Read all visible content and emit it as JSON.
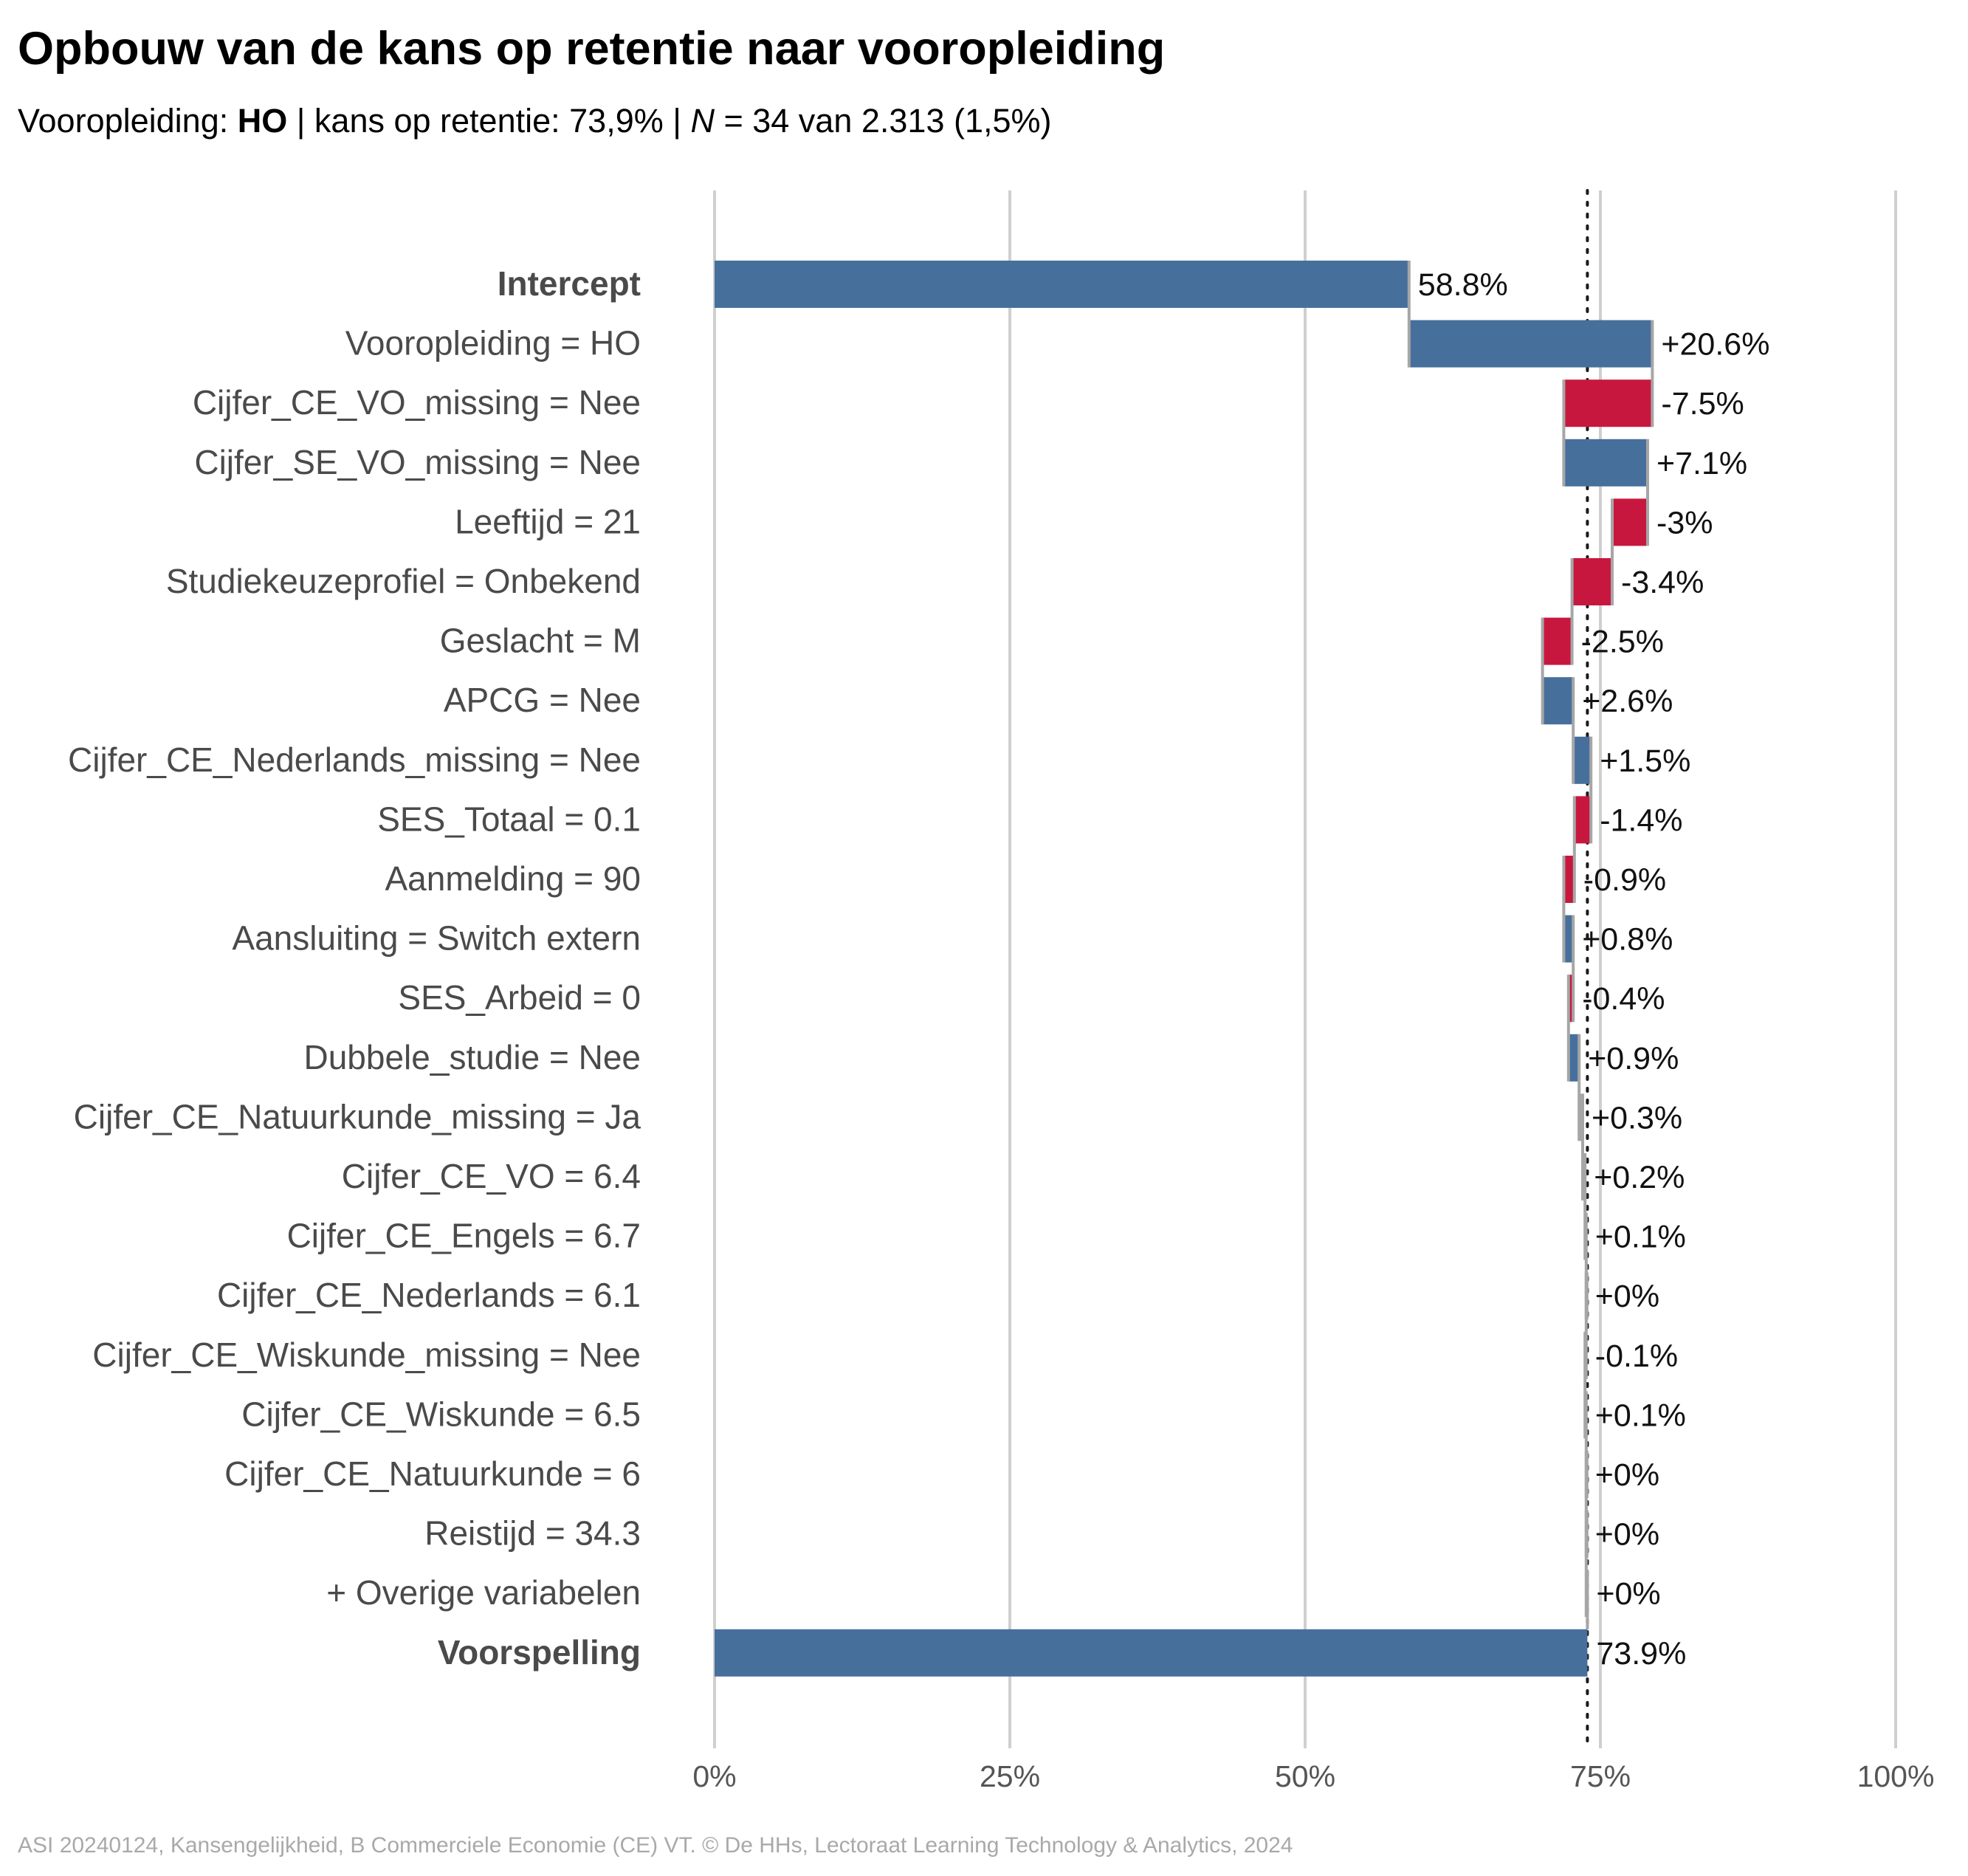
{
  "title": "Opbouw van de kans op retentie naar vooropleiding",
  "subtitle": {
    "prefix": "Vooropleiding: ",
    "group": "HO",
    "sep1": " | kans op retentie: ",
    "prob": "73,9%",
    "sep2": " | ",
    "n_symbol": "N",
    "n_text": " = 34 van 2.313 (1,5%)"
  },
  "footer": "ASI 20240124, Kansengelijkheid, B Commerciele Economie (CE) VT. © De HHs, Lectoraat Learning Technology & Analytics, 2024",
  "colors": {
    "positive": "#476f9c",
    "negative": "#c8173f",
    "neutral": "#a6a6a6",
    "connector": "#a6a6a6",
    "grid": "#cfcfcf",
    "label_text": "#4a4a4a",
    "value_text": "#111111",
    "tick_text": "#555555"
  },
  "chart_data": {
    "type": "waterfall",
    "orientation": "horizontal",
    "x_range": [
      0,
      100
    ],
    "x_unit": "%",
    "grid": true,
    "x_ticks": [
      {
        "value": 0,
        "label": "0%"
      },
      {
        "value": 25,
        "label": "25%"
      },
      {
        "value": 50,
        "label": "50%"
      },
      {
        "value": 75,
        "label": "75%"
      },
      {
        "value": 100,
        "label": "100%"
      }
    ],
    "reference_line": {
      "value": 73.9,
      "style": "dotted"
    },
    "bars": [
      {
        "label": "Intercept",
        "kind": "total",
        "bold": true,
        "start": 0,
        "end": 58.8,
        "value_label": "58.8%"
      },
      {
        "label": "Vooropleiding = HO",
        "kind": "step",
        "start": 58.8,
        "end": 79.4,
        "value_label": "+20.6%"
      },
      {
        "label": "Cijfer_CE_VO_missing = Nee",
        "kind": "step",
        "start": 79.4,
        "end": 71.9,
        "value_label": "-7.5%"
      },
      {
        "label": "Cijfer_SE_VO_missing = Nee",
        "kind": "step",
        "start": 71.9,
        "end": 79.0,
        "value_label": "+7.1%"
      },
      {
        "label": "Leeftijd = 21",
        "kind": "step",
        "start": 79.0,
        "end": 76.0,
        "value_label": "-3%"
      },
      {
        "label": "Studiekeuzeprofiel = Onbekend",
        "kind": "step",
        "start": 76.0,
        "end": 72.6,
        "value_label": "-3.4%"
      },
      {
        "label": "Geslacht = M",
        "kind": "step",
        "start": 72.6,
        "end": 70.1,
        "value_label": "-2.5%"
      },
      {
        "label": "APCG = Nee",
        "kind": "step",
        "start": 70.1,
        "end": 72.7,
        "value_label": "+2.6%"
      },
      {
        "label": "Cijfer_CE_Nederlands_missing = Nee",
        "kind": "step",
        "start": 72.7,
        "end": 74.2,
        "value_label": "+1.5%"
      },
      {
        "label": "SES_Totaal = 0.1",
        "kind": "step",
        "start": 74.2,
        "end": 72.8,
        "value_label": "-1.4%"
      },
      {
        "label": "Aanmelding = 90",
        "kind": "step",
        "start": 72.8,
        "end": 71.9,
        "value_label": "-0.9%"
      },
      {
        "label": "Aansluiting = Switch extern",
        "kind": "step",
        "start": 71.9,
        "end": 72.7,
        "value_label": "+0.8%"
      },
      {
        "label": "SES_Arbeid = 0",
        "kind": "step",
        "start": 72.7,
        "end": 72.3,
        "value_label": "-0.4%"
      },
      {
        "label": "Dubbele_studie = Nee",
        "kind": "step",
        "start": 72.3,
        "end": 73.2,
        "value_label": "+0.9%"
      },
      {
        "label": "Cijfer_CE_Natuurkunde_missing = Ja",
        "kind": "step",
        "start": 73.2,
        "end": 73.5,
        "value_label": "+0.3%"
      },
      {
        "label": "Cijfer_CE_VO = 6.4",
        "kind": "step",
        "start": 73.5,
        "end": 73.7,
        "value_label": "+0.2%"
      },
      {
        "label": "Cijfer_CE_Engels = 6.7",
        "kind": "step",
        "start": 73.7,
        "end": 73.8,
        "value_label": "+0.1%"
      },
      {
        "label": "Cijfer_CE_Nederlands = 6.1",
        "kind": "step",
        "start": 73.8,
        "end": 73.8,
        "value_label": "+0%"
      },
      {
        "label": "Cijfer_CE_Wiskunde_missing = Nee",
        "kind": "step",
        "start": 73.8,
        "end": 73.7,
        "value_label": "-0.1%"
      },
      {
        "label": "Cijfer_CE_Wiskunde = 6.5",
        "kind": "step",
        "start": 73.7,
        "end": 73.8,
        "value_label": "+0.1%"
      },
      {
        "label": "Cijfer_CE_Natuurkunde = 6",
        "kind": "step",
        "start": 73.8,
        "end": 73.8,
        "value_label": "+0%"
      },
      {
        "label": "Reistijd = 34.3",
        "kind": "step",
        "start": 73.8,
        "end": 73.8,
        "value_label": "+0%"
      },
      {
        "label": "+ Overige variabelen",
        "kind": "step",
        "start": 73.8,
        "end": 73.9,
        "value_label": "+0%"
      },
      {
        "label": "Voorspelling",
        "kind": "total",
        "bold": true,
        "start": 0,
        "end": 73.9,
        "value_label": "73.9%"
      }
    ]
  }
}
